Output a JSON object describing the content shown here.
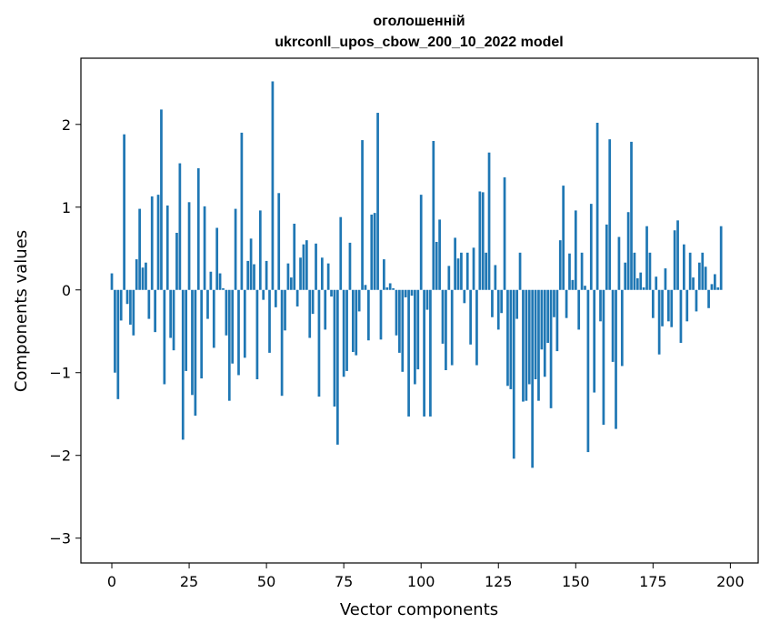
{
  "chart_data": {
    "type": "bar",
    "title": [
      "оголошенній",
      "ukrconll_upos_cbow_200_10_2022 model"
    ],
    "xlabel": "Vector components",
    "ylabel": "Components values",
    "xlim": [
      -10,
      209
    ],
    "ylim": [
      -3.3,
      2.8
    ],
    "xticks": [
      0,
      25,
      50,
      75,
      100,
      125,
      150,
      175,
      200
    ],
    "xtick_labels": [
      "0",
      "25",
      "50",
      "75",
      "100",
      "125",
      "150",
      "175",
      "200"
    ],
    "yticks": [
      -3,
      -2,
      -1,
      0,
      1,
      2
    ],
    "ytick_labels": [
      "−3",
      "−2",
      "−1",
      "0",
      "1",
      "2"
    ],
    "bar_color": "#1f77b4",
    "grid": false,
    "values": [
      0.2,
      -1.0,
      -1.32,
      -0.37,
      1.88,
      -0.17,
      -0.42,
      -0.55,
      0.37,
      0.98,
      0.27,
      0.33,
      -0.35,
      1.13,
      -0.51,
      1.15,
      2.18,
      -1.14,
      1.02,
      -0.58,
      -0.73,
      0.69,
      1.53,
      -1.81,
      -0.98,
      1.06,
      -1.27,
      -1.52,
      1.47,
      -1.07,
      1.01,
      -0.35,
      0.22,
      -0.7,
      0.75,
      0.2,
      0.02,
      -0.55,
      -1.34,
      -0.89,
      0.98,
      -1.03,
      1.9,
      -0.82,
      0.35,
      0.62,
      0.31,
      -1.08,
      0.96,
      -0.12,
      0.35,
      -0.76,
      2.52,
      -0.21,
      1.17,
      -1.28,
      -0.49,
      0.32,
      0.15,
      0.8,
      -0.2,
      0.39,
      0.55,
      0.6,
      -0.58,
      -0.29,
      0.56,
      -1.29,
      0.39,
      -0.48,
      0.32,
      -0.08,
      -1.41,
      -1.87,
      0.88,
      -1.05,
      -0.98,
      0.57,
      -0.75,
      -0.79,
      -0.26,
      1.81,
      0.06,
      -0.61,
      0.91,
      0.93,
      2.14,
      -0.6,
      0.37,
      0.03,
      0.08,
      0.02,
      -0.55,
      -0.76,
      -0.99,
      -0.09,
      -1.53,
      -0.07,
      -1.14,
      -0.96,
      1.15,
      -1.53,
      -0.24,
      -1.53,
      1.8,
      0.58,
      0.85,
      -0.65,
      -0.97,
      0.29,
      -0.91,
      0.63,
      0.38,
      0.45,
      -0.16,
      0.45,
      -0.66,
      0.51,
      -0.91,
      1.19,
      1.18,
      0.45,
      1.66,
      -0.33,
      0.3,
      -0.48,
      -0.28,
      1.36,
      -1.16,
      -1.2,
      -2.04,
      -0.35,
      0.45,
      -1.35,
      -1.34,
      -1.14,
      -2.15,
      -1.08,
      -1.34,
      -0.72,
      -1.05,
      -0.64,
      -1.43,
      -0.33,
      -0.74,
      0.6,
      1.26,
      -0.34,
      0.44,
      0.12,
      0.96,
      -0.48,
      0.45,
      0.05,
      -1.96,
      1.04,
      -1.24,
      2.02,
      -0.38,
      -1.63,
      0.79,
      1.82,
      -0.87,
      -1.68,
      0.64,
      -0.92,
      0.33,
      0.94,
      1.79,
      0.45,
      0.14,
      0.21,
      0.03,
      0.77,
      0.45,
      -0.34,
      0.16,
      -0.78,
      -0.44,
      0.26,
      -0.38,
      -0.45,
      0.72,
      0.84,
      -0.64,
      0.55,
      -0.38,
      0.45,
      0.15,
      -0.26,
      0.33,
      0.45,
      0.28,
      -0.22,
      0.07,
      0.19,
      0.03,
      0.77
    ]
  }
}
